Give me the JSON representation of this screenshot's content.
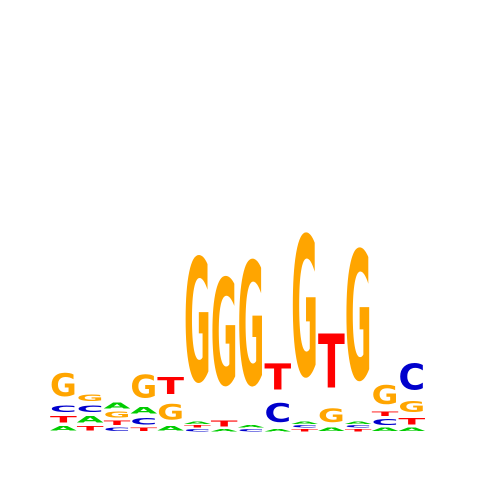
{
  "chart_data": {
    "type": "sequence-logo",
    "title": "",
    "xlabel": "",
    "ylabel": "",
    "alphabet": [
      "A",
      "C",
      "G",
      "T"
    ],
    "colors": {
      "A": "#00cc00",
      "C": "#0000cc",
      "G": "#ffa500",
      "T": "#ff0000"
    },
    "ylim": [
      0,
      2
    ],
    "positions": [
      [
        [
          "A",
          0.04
        ],
        [
          "T",
          0.06
        ],
        [
          "C",
          0.06
        ],
        [
          "G",
          0.2
        ]
      ],
      [
        [
          "T",
          0.04
        ],
        [
          "A",
          0.06
        ],
        [
          "C",
          0.06
        ],
        [
          "G",
          0.06
        ]
      ],
      [
        [
          "C",
          0.03
        ],
        [
          "T",
          0.04
        ],
        [
          "G",
          0.05
        ],
        [
          "A",
          0.05
        ]
      ],
      [
        [
          "T",
          0.03
        ],
        [
          "C",
          0.06
        ],
        [
          "A",
          0.06
        ],
        [
          "G",
          0.2
        ]
      ],
      [
        [
          "A",
          0.04
        ],
        [
          "G",
          0.14
        ],
        [
          "T",
          0.15
        ]
      ],
      [
        [
          "C",
          0.02
        ],
        [
          "T",
          0.02
        ],
        [
          "A",
          0.02
        ],
        [
          "G",
          1.1
        ]
      ],
      [
        [
          "A",
          0.02
        ],
        [
          "T",
          0.05
        ],
        [
          "G",
          0.95
        ]
      ],
      [
        [
          "C",
          0.02
        ],
        [
          "A",
          0.02
        ],
        [
          "G",
          1.1
        ]
      ],
      [
        [
          "A",
          0.02
        ],
        [
          "C",
          0.17
        ],
        [
          "T",
          0.23
        ]
      ],
      [
        [
          "T",
          0.02
        ],
        [
          "C",
          0.02
        ],
        [
          "A",
          0.02
        ],
        [
          "G",
          1.25
        ]
      ],
      [
        [
          "A",
          0.03
        ],
        [
          "G",
          0.12
        ],
        [
          "T",
          0.48
        ]
      ],
      [
        [
          "T",
          0.02
        ],
        [
          "C",
          0.02
        ],
        [
          "A",
          0.02
        ],
        [
          "G",
          1.15
        ]
      ],
      [
        [
          "A",
          0.03
        ],
        [
          "C",
          0.05
        ],
        [
          "T",
          0.04
        ],
        [
          "G",
          0.17
        ]
      ],
      [
        [
          "A",
          0.03
        ],
        [
          "T",
          0.06
        ],
        [
          "G",
          0.1
        ],
        [
          "C",
          0.23
        ]
      ]
    ]
  }
}
